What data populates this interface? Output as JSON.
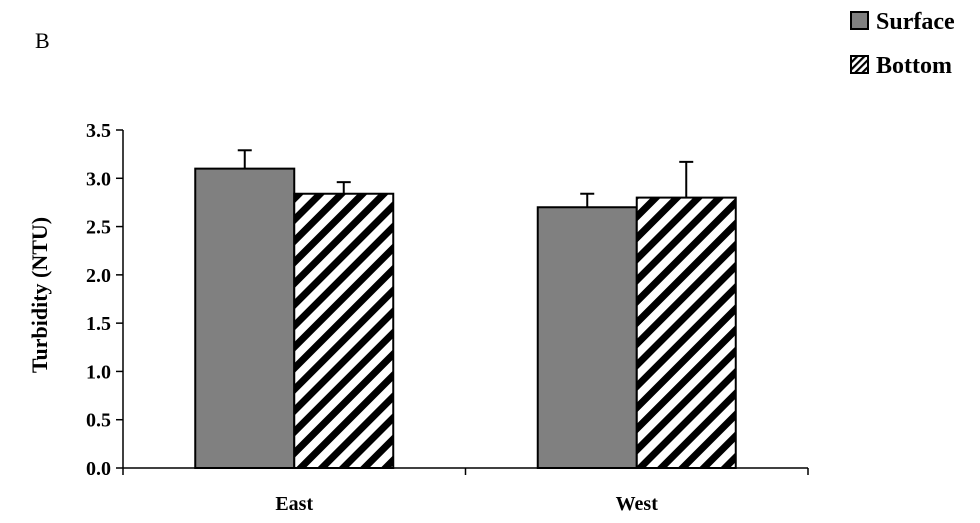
{
  "panel_label": "B",
  "chart_data": {
    "type": "bar",
    "categories": [
      "East",
      "West"
    ],
    "series": [
      {
        "name": "Surface",
        "values": [
          3.1,
          2.7
        ],
        "errors": [
          0.19,
          0.14
        ],
        "color": "#808080",
        "pattern": "solid"
      },
      {
        "name": "Bottom",
        "values": [
          2.84,
          2.8
        ],
        "errors": [
          0.12,
          0.37
        ],
        "color": "#000000",
        "pattern": "diagonal-hatch"
      }
    ],
    "title": "",
    "xlabel": "",
    "ylabel": "Turbidity (NTU)",
    "ylim": [
      0,
      3.5
    ],
    "yticks": [
      "0.0",
      "0.5",
      "1.0",
      "1.5",
      "2.0",
      "2.5",
      "3.0",
      "3.5"
    ],
    "grid": false,
    "legend_position": "top-right"
  }
}
